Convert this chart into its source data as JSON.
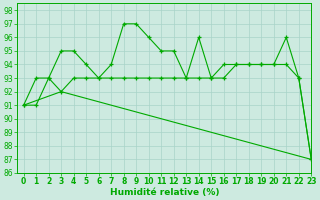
{
  "line1_x": [
    0,
    1,
    2,
    3,
    4,
    5,
    6,
    7,
    8,
    9,
    10,
    11,
    12,
    13,
    14,
    15,
    16,
    17,
    18,
    19,
    20,
    21,
    22,
    23
  ],
  "line1_y": [
    91,
    93,
    93,
    95,
    95,
    94,
    93,
    94,
    97,
    97,
    96,
    95,
    95,
    93,
    96,
    93,
    94,
    94,
    94,
    94,
    94,
    96,
    93,
    87
  ],
  "line2_x": [
    0,
    1,
    2,
    3,
    4,
    5,
    6,
    7,
    8,
    9,
    10,
    11,
    12,
    13,
    14,
    15,
    16,
    17,
    18,
    19,
    20,
    21,
    22,
    23
  ],
  "line2_y": [
    91,
    91,
    93,
    92,
    93,
    93,
    93,
    93,
    93,
    93,
    93,
    93,
    93,
    93,
    93,
    93,
    93,
    94,
    94,
    94,
    94,
    94,
    93,
    87
  ],
  "line3_x": [
    0,
    3,
    23
  ],
  "line3_y": [
    91,
    92,
    87
  ],
  "line_color": "#00aa00",
  "bg_color": "#cdeae0",
  "grid_color": "#a8d4c8",
  "xlabel": "Humidité relative (%)",
  "ylim": [
    86,
    98.5
  ],
  "xlim": [
    -0.5,
    23
  ],
  "yticks": [
    86,
    87,
    88,
    89,
    90,
    91,
    92,
    93,
    94,
    95,
    96,
    97,
    98
  ],
  "xticks": [
    0,
    1,
    2,
    3,
    4,
    5,
    6,
    7,
    8,
    9,
    10,
    11,
    12,
    13,
    14,
    15,
    16,
    17,
    18,
    19,
    20,
    21,
    22,
    23
  ],
  "tick_fontsize": 5.5,
  "xlabel_fontsize": 6.5
}
